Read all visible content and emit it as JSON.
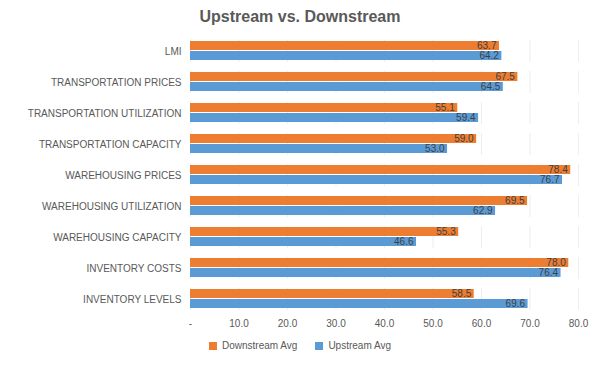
{
  "chart_data": {
    "type": "bar",
    "title": "Upstream vs. Downstream",
    "orientation": "horizontal",
    "categories": [
      "LMI",
      "TRANSPORTATION PRICES",
      "TRANSPORTATION UTILIZATION",
      "TRANSPORTATION CAPACITY",
      "WAREHOUSING PRICES",
      "WAREHOUSING UTILIZATION",
      "WAREHOUSING CAPACITY",
      "INVENTORY COSTS",
      "INVENTORY LEVELS"
    ],
    "series": [
      {
        "name": "Downstream Avg",
        "color": "#ED7D31",
        "values": [
          63.7,
          67.5,
          55.1,
          59.0,
          78.4,
          69.5,
          55.3,
          78.0,
          58.5
        ],
        "value_labels": [
          "63.7",
          "67.5",
          "55.1",
          "59.0",
          "78.4",
          "69.5",
          "55.3",
          "78.0",
          "58.5"
        ]
      },
      {
        "name": "Upstream Avg",
        "color": "#5B9BD5",
        "values": [
          64.2,
          64.5,
          59.4,
          53.0,
          76.7,
          62.9,
          46.6,
          76.4,
          69.6
        ],
        "value_labels": [
          "64.2",
          "64.5",
          "59.4",
          "53.0",
          "76.7",
          "62.9",
          "46.6",
          "76.4",
          "69.6"
        ]
      }
    ],
    "xlim": [
      0,
      80
    ],
    "xticks": [
      {
        "value": 0,
        "label": "-"
      },
      {
        "value": 10,
        "label": "10.0"
      },
      {
        "value": 20,
        "label": "20.0"
      },
      {
        "value": 30,
        "label": "30.0"
      },
      {
        "value": 40,
        "label": "40.0"
      },
      {
        "value": 50,
        "label": "50.0"
      },
      {
        "value": 60,
        "label": "60.0"
      },
      {
        "value": 70,
        "label": "70.0"
      },
      {
        "value": 80,
        "label": "80.0"
      }
    ],
    "grid": true,
    "data_labels": true,
    "legend": "bottom"
  }
}
